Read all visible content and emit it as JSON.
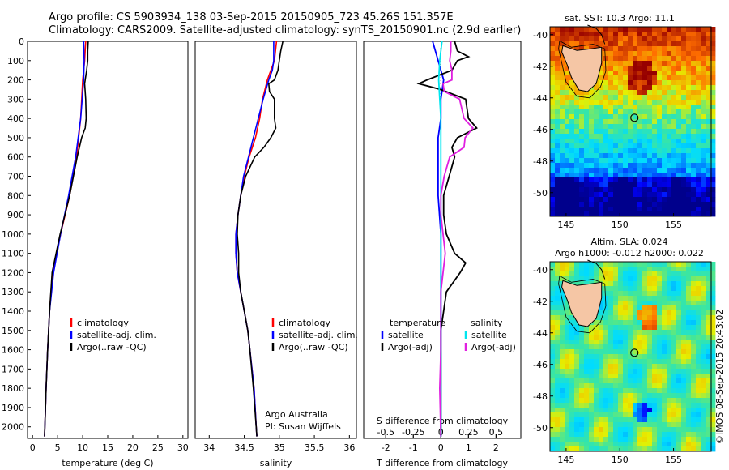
{
  "header": {
    "line1": "Argo profile: CS 5903934_138 03-Sep-2015 20150905_723 45.26S 151.357E",
    "line2": "Climatology: CARS2009. Satellite-adjusted climatology: synTS_20150901.nc (2.9d earlier)"
  },
  "side_label": "©IMOS 08-Sep-2015 20:43:02",
  "colors": {
    "climatology": "#ff0000",
    "satellite": "#0000ff",
    "argo": "#000000",
    "salinity_satellite": "#00e5ee",
    "salinity_argo": "#e020e0",
    "land": "#f5c6a5",
    "coast": "#000000"
  },
  "chart_data": [
    {
      "type": "line",
      "id": "temperature",
      "xlabel": "temperature (deg C)",
      "ylabel": "",
      "xlim": [
        -1,
        31
      ],
      "ylim": [
        2060,
        0
      ],
      "xticks": [
        0,
        5,
        10,
        15,
        20,
        25,
        30
      ],
      "yticks": [
        0,
        100,
        200,
        300,
        400,
        500,
        600,
        700,
        800,
        900,
        1000,
        1100,
        1200,
        1300,
        1400,
        1500,
        1600,
        1700,
        1800,
        1900,
        2000
      ],
      "legend": [
        "climatology",
        "satellite-adj. clim.",
        "Argo(..raw -QC)"
      ],
      "series": [
        {
          "name": "climatology",
          "depth": [
            0,
            100,
            200,
            400,
            600,
            800,
            1000,
            1200,
            1400,
            1600,
            1800,
            2050
          ],
          "values": [
            10.6,
            10.4,
            10.0,
            9.6,
            8.8,
            7.4,
            5.6,
            4.0,
            3.4,
            3.0,
            2.7,
            2.4
          ]
        },
        {
          "name": "satellite-adj. clim.",
          "depth": [
            0,
            100,
            200,
            400,
            600,
            800,
            1000,
            1200,
            1400,
            1600,
            1800,
            2050
          ],
          "values": [
            10.2,
            10.3,
            10.2,
            9.6,
            8.6,
            7.2,
            5.6,
            4.2,
            3.4,
            3.0,
            2.7,
            2.4
          ]
        },
        {
          "name": "Argo(..raw -QC)",
          "depth": [
            0,
            50,
            100,
            150,
            200,
            220,
            300,
            400,
            450,
            500,
            600,
            800,
            1000,
            1200,
            1400,
            1600,
            1800,
            2050
          ],
          "values": [
            11.1,
            11.0,
            11.0,
            10.8,
            10.5,
            10.4,
            10.6,
            10.7,
            10.5,
            9.8,
            8.9,
            7.4,
            5.5,
            3.9,
            3.4,
            3.0,
            2.7,
            2.4
          ]
        }
      ]
    },
    {
      "type": "line",
      "id": "salinity",
      "xlabel": "salinity",
      "xlim": [
        33.8,
        36.1
      ],
      "ylim": [
        2060,
        0
      ],
      "xticks": [
        34,
        34.5,
        35,
        35.5,
        36
      ],
      "legend": [
        "climatology",
        "satellite-adj. clim.",
        "Argo(..raw -QC)"
      ],
      "annotation": [
        "Argo Australia",
        "PI: Susan Wijffels"
      ],
      "series": [
        {
          "name": "climatology",
          "depth": [
            0,
            100,
            150,
            200,
            300,
            400,
            500,
            600,
            700,
            800,
            900,
            1000,
            1100,
            1200,
            1300,
            1400,
            1500,
            1600,
            1800,
            2000,
            2050
          ],
          "values": [
            34.96,
            34.93,
            34.88,
            34.83,
            34.76,
            34.72,
            34.66,
            34.57,
            34.5,
            34.45,
            34.41,
            34.38,
            34.38,
            34.4,
            34.45,
            34.5,
            34.55,
            34.58,
            34.64,
            34.67,
            34.68
          ]
        },
        {
          "name": "satellite-adj. clim.",
          "depth": [
            0,
            100,
            150,
            200,
            300,
            400,
            500,
            600,
            700,
            800,
            900,
            1000,
            1100,
            1200,
            1300,
            1400,
            1500,
            1600,
            1800,
            2000,
            2050
          ],
          "values": [
            34.92,
            34.92,
            34.9,
            34.85,
            34.77,
            34.7,
            34.63,
            34.56,
            34.49,
            34.45,
            34.41,
            34.38,
            34.38,
            34.4,
            34.45,
            34.5,
            34.55,
            34.58,
            34.64,
            34.67,
            34.68
          ]
        },
        {
          "name": "Argo(..raw -QC)",
          "depth": [
            0,
            50,
            100,
            150,
            200,
            220,
            260,
            300,
            400,
            450,
            500,
            550,
            600,
            700,
            800,
            900,
            1000,
            1100,
            1200,
            1300,
            1400,
            1500,
            1600,
            1800,
            2000,
            2050
          ],
          "values": [
            35.05,
            35.02,
            35.0,
            34.98,
            34.93,
            34.85,
            34.86,
            34.93,
            34.93,
            34.95,
            34.88,
            34.78,
            34.65,
            34.52,
            34.45,
            34.41,
            34.4,
            34.42,
            34.42,
            34.45,
            34.5,
            34.55,
            34.58,
            34.63,
            34.67,
            34.68
          ]
        }
      ]
    },
    {
      "type": "line",
      "id": "difference",
      "xlabel": "T difference from climatology",
      "xlabel_top": "S difference from climatology",
      "xlim": [
        -2.8,
        2.9
      ],
      "ylim": [
        2060,
        0
      ],
      "xticks": [
        -2,
        -1,
        0,
        1,
        2
      ],
      "xticks_salinity": [
        -0.5,
        -0.25,
        0,
        0.25,
        0.5
      ],
      "xticks_salinity_labels": [
        "-0.5",
        "-0.25",
        "0",
        "0.25",
        "0.5"
      ],
      "legend_temperature_header": "temperature",
      "legend_salinity_header": "salinity",
      "legend": [
        "satellite",
        "Argo(-adj)"
      ],
      "series": [
        {
          "name": "satellite",
          "group": "temperature",
          "depth": [
            0,
            100,
            200,
            300,
            400,
            500,
            600,
            800,
            1000,
            1200,
            1400,
            1600,
            1800,
            2050
          ],
          "values": [
            -0.3,
            -0.1,
            0.1,
            0.0,
            0.0,
            -0.1,
            -0.1,
            -0.1,
            0.0,
            0.0,
            0.0,
            0.0,
            0.0,
            0.0
          ]
        },
        {
          "name": "Argo(-adj)",
          "group": "temperature",
          "depth": [
            0,
            50,
            80,
            100,
            150,
            200,
            220,
            250,
            300,
            400,
            450,
            500,
            550,
            600,
            650,
            700,
            800,
            900,
            1000,
            1100,
            1150,
            1200,
            1300,
            1400,
            1500,
            1600,
            1700,
            1800,
            1900,
            2050
          ],
          "values": [
            0.5,
            0.6,
            1.0,
            0.6,
            0.4,
            -0.5,
            -0.8,
            0.0,
            0.9,
            1.0,
            1.3,
            0.6,
            0.4,
            0.5,
            0.4,
            0.3,
            0.1,
            0.1,
            0.2,
            0.5,
            0.9,
            0.7,
            0.2,
            0.1,
            0.0,
            0.0,
            0.0,
            0.0,
            0.0,
            0.0
          ]
        },
        {
          "name": "satellite",
          "group": "salinity",
          "depth": [
            0,
            100,
            200,
            300,
            400,
            500,
            600,
            800,
            1000,
            1200,
            1400,
            1600,
            1800,
            2050
          ],
          "values": [
            0.01,
            -0.01,
            -0.02,
            -0.01,
            0.0,
            0.0,
            0.0,
            0.0,
            0.0,
            0.0,
            0.0,
            0.0,
            0.0,
            0.0
          ]
        },
        {
          "name": "Argo(-adj)",
          "group": "salinity",
          "depth": [
            0,
            50,
            100,
            150,
            200,
            220,
            260,
            300,
            400,
            450,
            500,
            550,
            600,
            700,
            800,
            900,
            1000,
            1100,
            1200,
            1300,
            1400,
            1600,
            1800,
            2050
          ],
          "values": [
            0.09,
            0.09,
            0.08,
            0.1,
            0.1,
            0.02,
            0.03,
            0.17,
            0.21,
            0.29,
            0.22,
            0.21,
            0.08,
            0.03,
            0.0,
            0.0,
            0.02,
            0.04,
            0.02,
            0.0,
            0.0,
            0.0,
            -0.01,
            0.0
          ]
        }
      ]
    },
    {
      "type": "heatmap",
      "id": "sst-map",
      "title": "sat. SST: 10.3 Argo: 11.1",
      "xlim": [
        143.5,
        158.5
      ],
      "ylim": [
        -51.5,
        -39.5
      ],
      "xticks": [
        145,
        150,
        155
      ],
      "yticks": [
        -40,
        -42,
        -44,
        -46,
        -48,
        -50
      ],
      "profile_location": {
        "lon": 151.357,
        "lat": -45.26
      }
    },
    {
      "type": "heatmap",
      "id": "sla-map",
      "title_line1": "Altim. SLA: 0.024",
      "title_line2": "Argo h1000: -0.012 h2000: 0.022",
      "xlim": [
        143.5,
        158.5
      ],
      "ylim": [
        -51.5,
        -39.5
      ],
      "xticks": [
        145,
        150,
        155
      ],
      "yticks": [
        -40,
        -42,
        -44,
        -46,
        -48,
        -50
      ],
      "profile_location": {
        "lon": 151.357,
        "lat": -45.26
      }
    }
  ]
}
